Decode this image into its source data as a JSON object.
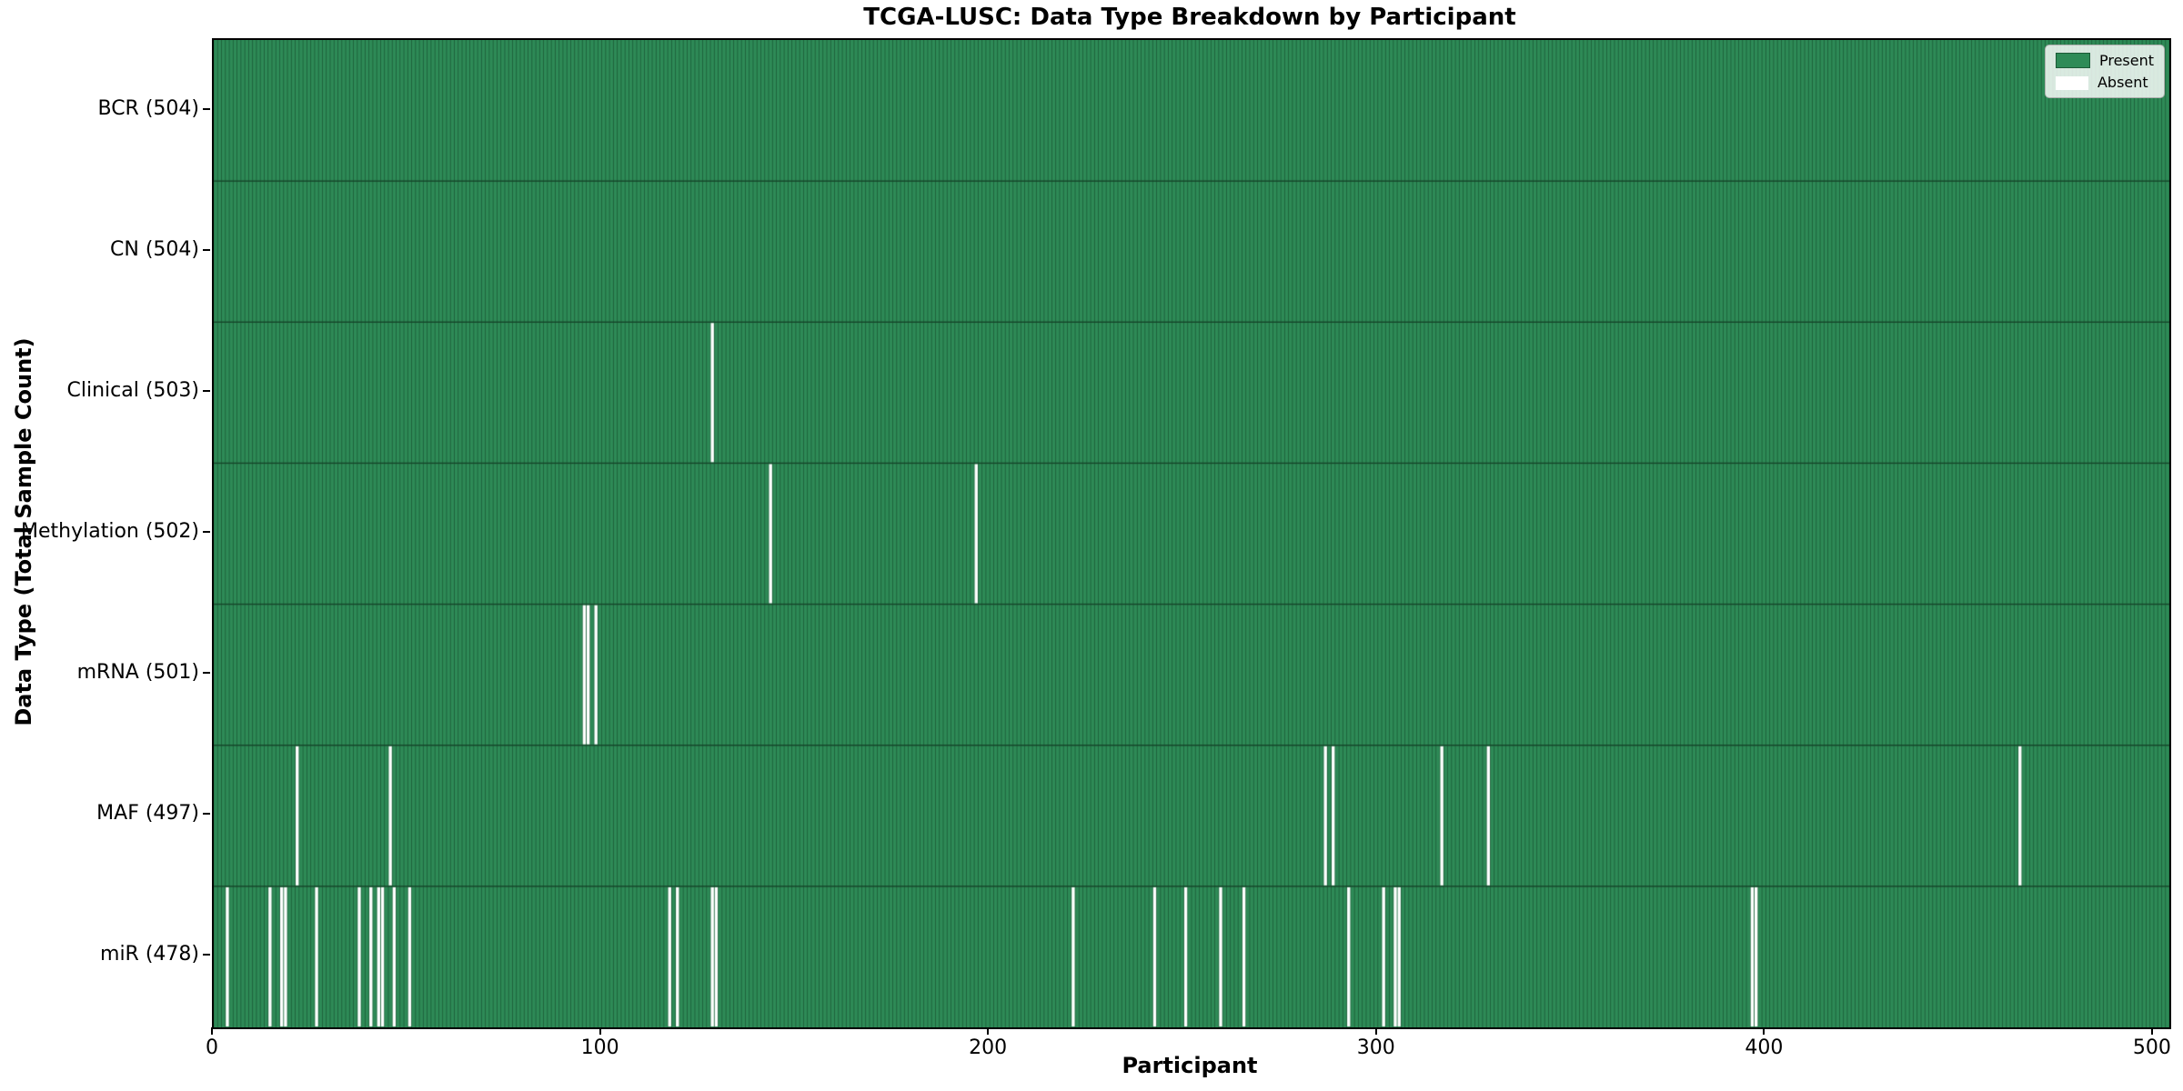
{
  "title": "TCGA-LUSC: Data Type Breakdown by Participant",
  "xlabel": "Participant",
  "ylabel": "Data Type (Total Sample Count)",
  "legend": {
    "items": [
      {
        "label": "Present",
        "color": "#2e8b57"
      },
      {
        "label": "Absent",
        "color": "#ffffff"
      }
    ]
  },
  "colors": {
    "present": "#2e8b57",
    "absent": "#ffffff",
    "edge": "#1b5a36",
    "row_divider": "#16452a",
    "spine": "#000000"
  },
  "chart_data": {
    "type": "heatmap",
    "n_participants": 504,
    "x_ticks": [
      0,
      100,
      200,
      300,
      400,
      500
    ],
    "x_range": [
      0,
      504
    ],
    "grid": false,
    "legend_position": "upper right",
    "rows": [
      {
        "label": "BCR (504)",
        "data_type": "BCR",
        "total_count": 504,
        "absent_participants": []
      },
      {
        "label": "CN (504)",
        "data_type": "CN",
        "total_count": 504,
        "absent_participants": []
      },
      {
        "label": "Clinical (503)",
        "data_type": "Clinical",
        "total_count": 503,
        "absent_participants": [
          128
        ]
      },
      {
        "label": "Methylation (502)",
        "data_type": "Methylation",
        "total_count": 502,
        "absent_participants": [
          143,
          196
        ]
      },
      {
        "label": "mRNA (501)",
        "data_type": "mRNA",
        "total_count": 501,
        "absent_participants": [
          95,
          96,
          98
        ]
      },
      {
        "label": "MAF (497)",
        "data_type": "MAF",
        "total_count": 497,
        "absent_participants": [
          21,
          45,
          286,
          288,
          316,
          328,
          465
        ]
      },
      {
        "label": "miR (478)",
        "data_type": "miR",
        "total_count": 478,
        "absent_participants": [
          3,
          14,
          17,
          18,
          26,
          37,
          40,
          42,
          43,
          46,
          50,
          117,
          119,
          128,
          129,
          221,
          242,
          250,
          259,
          265,
          292,
          301,
          304,
          305,
          396,
          397
        ]
      }
    ]
  }
}
